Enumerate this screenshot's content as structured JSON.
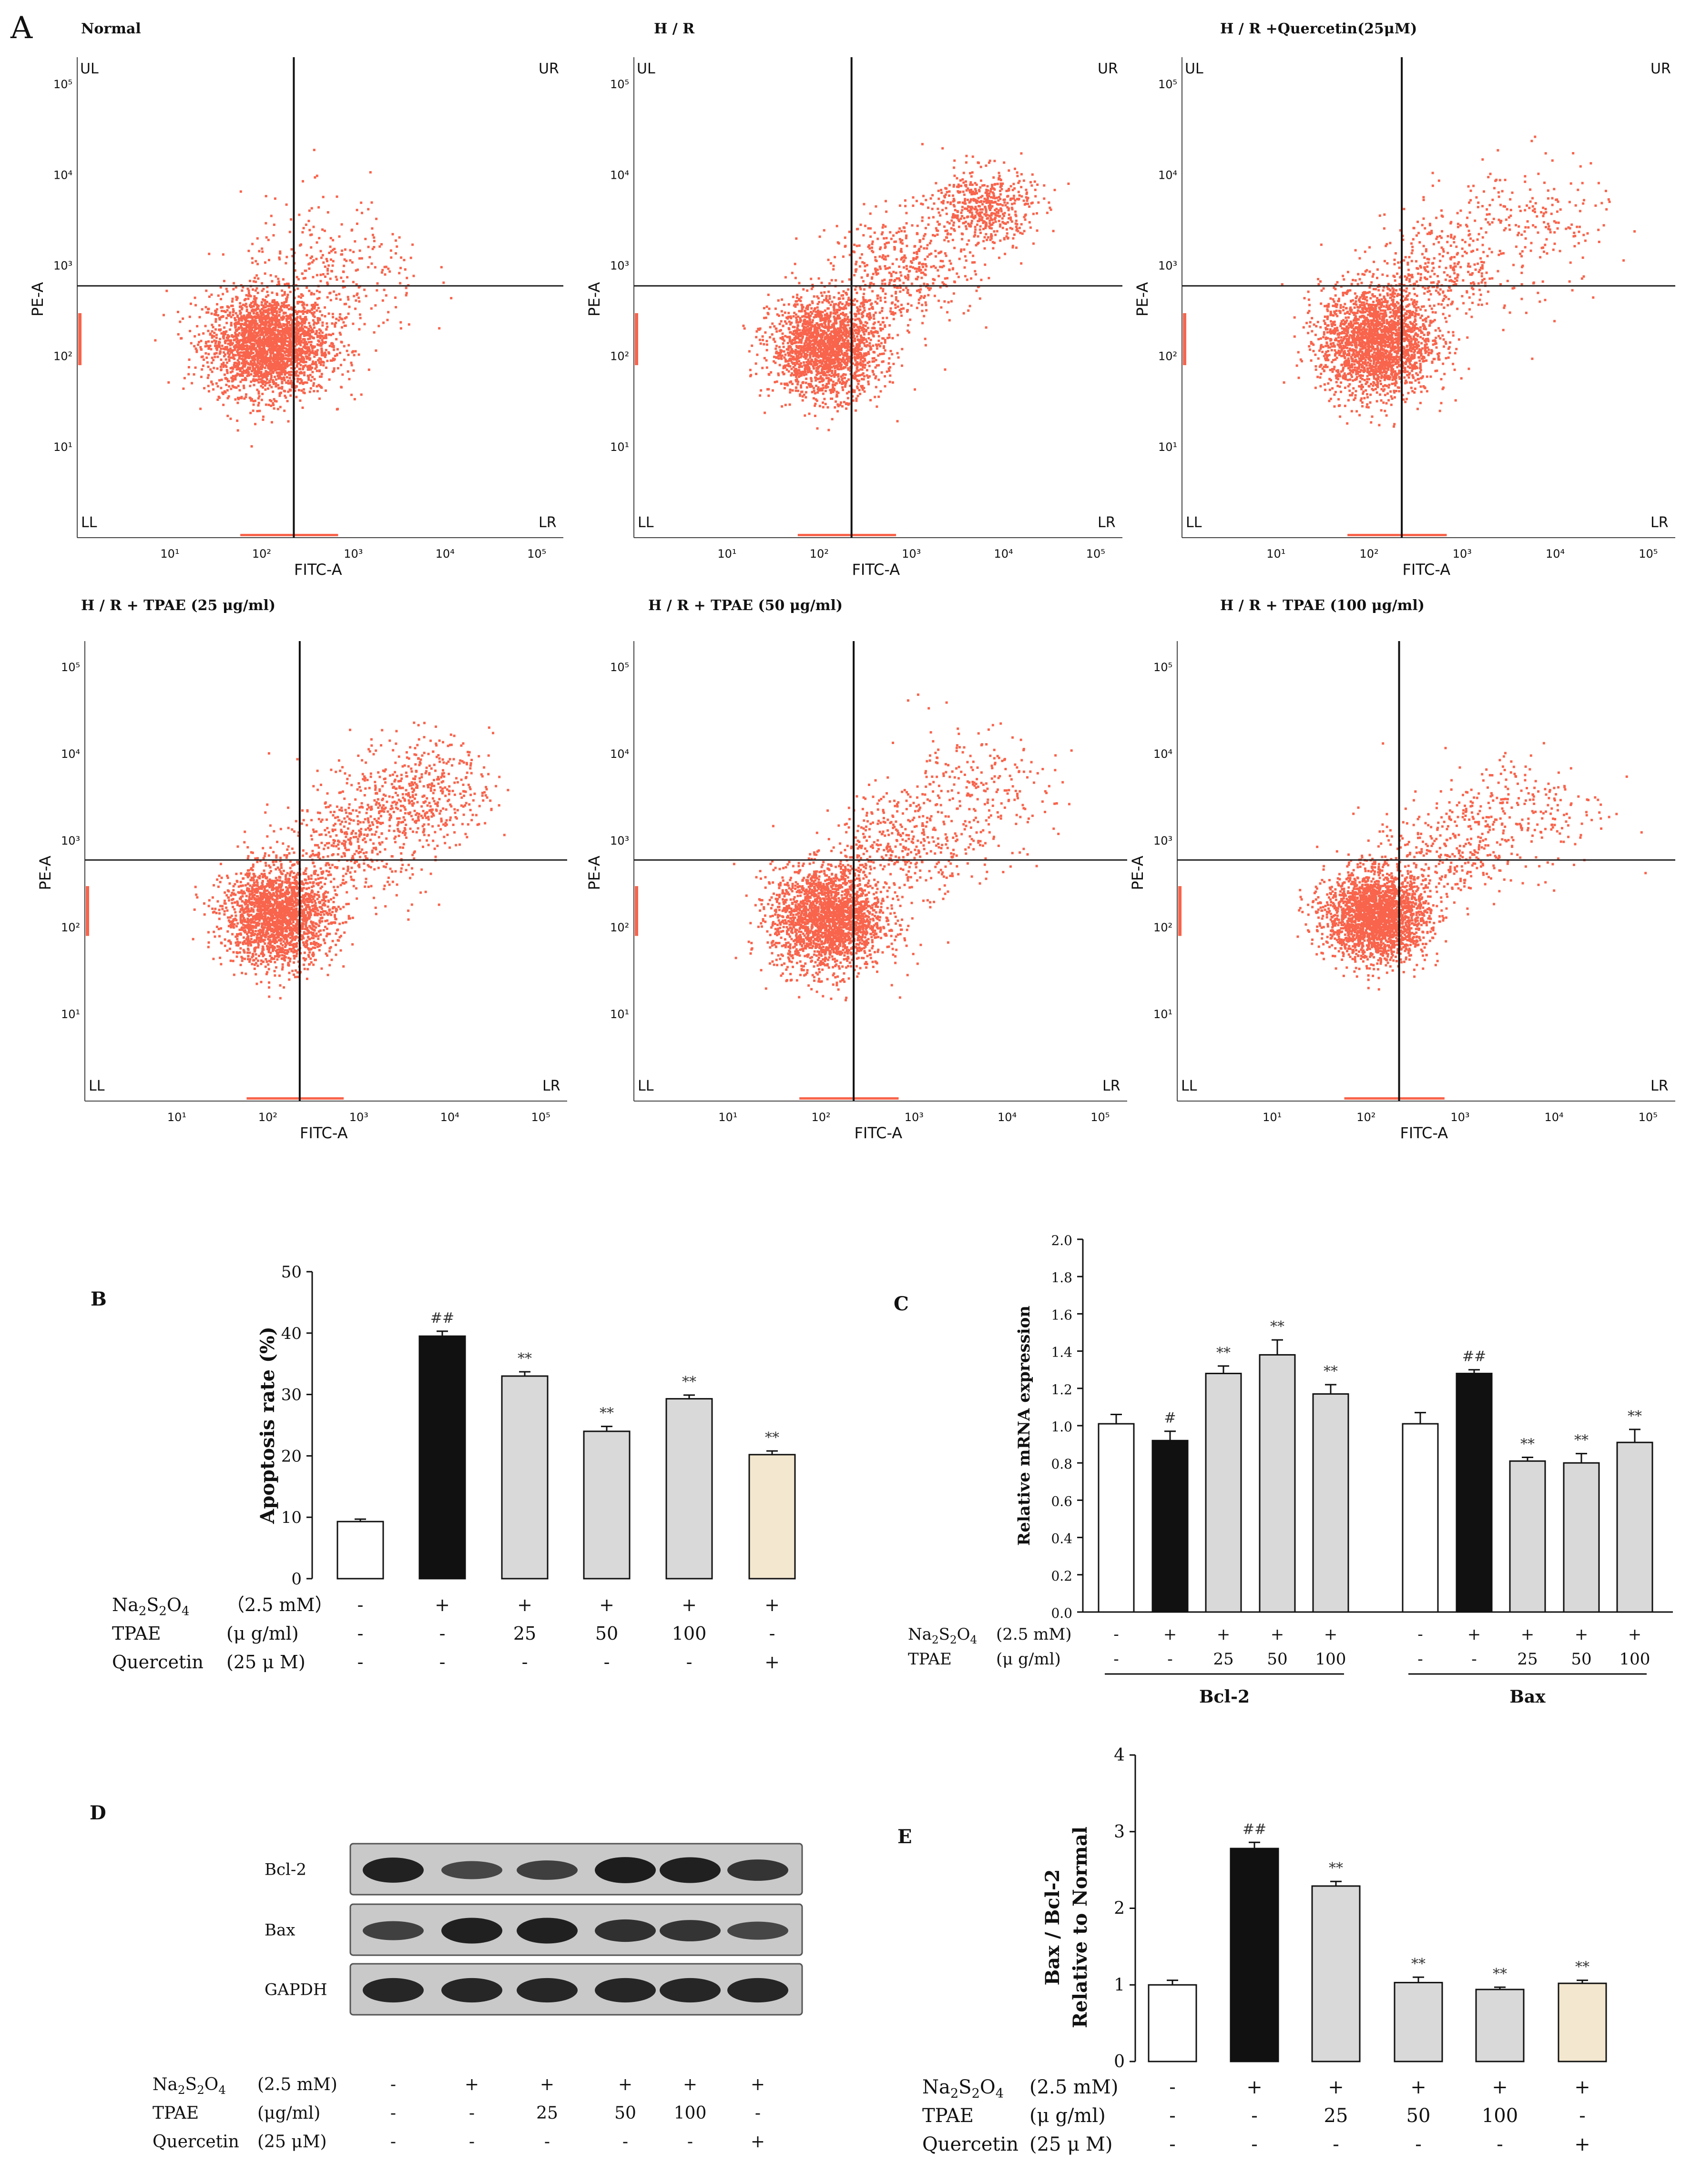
{
  "figure": {
    "panel_a_letter": "A",
    "panel_b_letter": "B",
    "panel_c_letter": "C",
    "panel_d_letter": "D",
    "panel_e_letter": "E"
  },
  "colors": {
    "dots": "#f8644c",
    "black_bar": "#111111",
    "grey_bar": "#d9d9d9",
    "white_bar": "#ffffff",
    "quercetin_bar": "#f3e7cf",
    "blot_bg": "#c9c9c9",
    "band": "#1a1a1a"
  },
  "chart_data": [
    {
      "type": "scatter",
      "panel": "A",
      "title": "Normal",
      "xlabel": "FITC-A",
      "ylabel": "PE-A",
      "scale": "log",
      "xlim": [
        1,
        200000
      ],
      "ylim": [
        1,
        200000
      ],
      "x_ticks": [
        "10¹",
        "10²",
        "10³",
        "10⁴",
        "10⁵"
      ],
      "y_ticks": [
        "10¹",
        "10²",
        "10³",
        "10⁴",
        "10⁵"
      ],
      "quadrant_labels": [
        "UL",
        "UR",
        "LL",
        "LR"
      ],
      "gate": {
        "x": 230,
        "y": 600
      },
      "populations": [
        {
          "cx": 120,
          "cy": 140,
          "sx": 0.33,
          "sy": 0.28,
          "n": 2600
        },
        {
          "cx": 600,
          "cy": 800,
          "sx": 0.5,
          "sy": 0.42,
          "n": 300
        }
      ]
    },
    {
      "type": "scatter",
      "panel": "A",
      "title": "H / R",
      "xlabel": "FITC-A",
      "ylabel": "PE-A",
      "scale": "log",
      "xlim": [
        1,
        200000
      ],
      "ylim": [
        1,
        200000
      ],
      "x_ticks": [
        "10¹",
        "10²",
        "10³",
        "10⁴",
        "10⁵"
      ],
      "y_ticks": [
        "10¹",
        "10²",
        "10³",
        "10⁴",
        "10⁵"
      ],
      "quadrant_labels": [
        "UL",
        "UR",
        "LL",
        "LR"
      ],
      "gate": {
        "x": 230,
        "y": 600
      },
      "populations": [
        {
          "cx": 120,
          "cy": 130,
          "sx": 0.3,
          "sy": 0.27,
          "n": 2000
        },
        {
          "cx": 800,
          "cy": 900,
          "sx": 0.38,
          "sy": 0.3,
          "n": 450
        },
        {
          "cx": 6000,
          "cy": 4500,
          "sx": 0.28,
          "sy": 0.22,
          "n": 550
        }
      ]
    },
    {
      "type": "scatter",
      "panel": "A",
      "title": "H / R +Quercetin(25μM)",
      "xlabel": "FITC-A",
      "ylabel": "PE-A",
      "scale": "log",
      "xlim": [
        1,
        200000
      ],
      "ylim": [
        1,
        200000
      ],
      "x_ticks": [
        "10¹",
        "10²",
        "10³",
        "10⁴",
        "10⁵"
      ],
      "y_ticks": [
        "10¹",
        "10²",
        "10³",
        "10⁴",
        "10⁵"
      ],
      "quadrant_labels": [
        "UL",
        "UR",
        "LL",
        "LR"
      ],
      "gate": {
        "x": 230,
        "y": 600
      },
      "populations": [
        {
          "cx": 120,
          "cy": 150,
          "sx": 0.3,
          "sy": 0.3,
          "n": 2300
        },
        {
          "cx": 600,
          "cy": 900,
          "sx": 0.38,
          "sy": 0.32,
          "n": 350
        },
        {
          "cx": 5000,
          "cy": 3000,
          "sx": 0.45,
          "sy": 0.35,
          "n": 200
        }
      ]
    },
    {
      "type": "scatter",
      "panel": "A",
      "title": "H / R + TPAE (25 μg/ml)",
      "xlabel": "FITC-A",
      "ylabel": "PE-A",
      "scale": "log",
      "xlim": [
        1,
        200000
      ],
      "ylim": [
        1,
        200000
      ],
      "x_ticks": [
        "10¹",
        "10²",
        "10³",
        "10⁴",
        "10⁵"
      ],
      "y_ticks": [
        "10¹",
        "10²",
        "10³",
        "10⁴",
        "10⁵"
      ],
      "quadrant_labels": [
        "LL",
        "LR"
      ],
      "gate": {
        "x": 230,
        "y": 600
      },
      "populations": [
        {
          "cx": 130,
          "cy": 140,
          "sx": 0.3,
          "sy": 0.28,
          "n": 2100
        },
        {
          "cx": 900,
          "cy": 1000,
          "sx": 0.4,
          "sy": 0.32,
          "n": 450
        },
        {
          "cx": 5000,
          "cy": 4000,
          "sx": 0.38,
          "sy": 0.3,
          "n": 450
        }
      ]
    },
    {
      "type": "scatter",
      "panel": "A",
      "title": "H / R + TPAE (50 μg/ml)",
      "xlabel": "FITC-A",
      "ylabel": "PE-A",
      "scale": "log",
      "xlim": [
        1,
        200000
      ],
      "ylim": [
        1,
        200000
      ],
      "x_ticks": [
        "10¹",
        "10²",
        "10³",
        "10⁴",
        "10⁵"
      ],
      "y_ticks": [
        "10¹",
        "10²",
        "10³",
        "10⁴",
        "10⁵"
      ],
      "quadrant_labels": [
        "LL",
        "LR"
      ],
      "gate": {
        "x": 230,
        "y": 600
      },
      "populations": [
        {
          "cx": 120,
          "cy": 130,
          "sx": 0.3,
          "sy": 0.3,
          "n": 2300
        },
        {
          "cx": 800,
          "cy": 1000,
          "sx": 0.38,
          "sy": 0.3,
          "n": 350
        },
        {
          "cx": 4000,
          "cy": 3500,
          "sx": 0.45,
          "sy": 0.38,
          "n": 250
        }
      ]
    },
    {
      "type": "scatter",
      "panel": "A",
      "title": "H / R + TPAE (100 μg/ml)",
      "xlabel": "FITC-A",
      "ylabel": "PE-A",
      "scale": "log",
      "xlim": [
        1,
        200000
      ],
      "ylim": [
        1,
        200000
      ],
      "x_ticks": [
        "10¹",
        "10²",
        "10³",
        "10⁴",
        "10⁵"
      ],
      "y_ticks": [
        "10¹",
        "10²",
        "10³",
        "10⁴",
        "10⁵"
      ],
      "quadrant_labels": [
        "LL",
        "LR"
      ],
      "gate": {
        "x": 230,
        "y": 600
      },
      "populations": [
        {
          "cx": 130,
          "cy": 140,
          "sx": 0.27,
          "sy": 0.25,
          "n": 2400
        },
        {
          "cx": 700,
          "cy": 700,
          "sx": 0.38,
          "sy": 0.3,
          "n": 300
        },
        {
          "cx": 5000,
          "cy": 2500,
          "sx": 0.45,
          "sy": 0.35,
          "n": 220
        }
      ]
    },
    {
      "type": "bar",
      "panel": "B",
      "ylabel": "Apoptosis rate (%)",
      "ylim": [
        0,
        50
      ],
      "y_ticks": [
        0,
        10,
        20,
        30,
        40,
        50
      ],
      "values": [
        9.3,
        39.5,
        33.0,
        24.0,
        29.3,
        20.2
      ],
      "errors": [
        0.4,
        0.8,
        0.7,
        0.8,
        0.6,
        0.6
      ],
      "fills": [
        "white",
        "black",
        "grey",
        "grey",
        "grey",
        "quercetin"
      ],
      "marks": [
        "",
        "##",
        "**",
        "**",
        "**",
        "**"
      ],
      "treatment_rows": [
        {
          "name": "Na2S2O4",
          "unit": "（2.5 mM）",
          "cells": [
            "-",
            "+",
            "+",
            "+",
            "+",
            "+"
          ]
        },
        {
          "name": "TPAE",
          "unit": "(μ g/ml)",
          "cells": [
            "-",
            "-",
            "25",
            "50",
            "100",
            "-"
          ]
        },
        {
          "name": "Quercetin",
          "unit": "(25 μ M)",
          "cells": [
            "-",
            "-",
            "-",
            "-",
            "-",
            "+"
          ]
        }
      ]
    },
    {
      "type": "bar",
      "panel": "C",
      "ylabel": "Relative mRNA expression",
      "ylim": [
        0,
        2.0
      ],
      "y_ticks": [
        "0.0",
        "0.2",
        "0.4",
        "0.6",
        "0.8",
        "1.0",
        "1.2",
        "1.4",
        "1.6",
        "1.8",
        "2.0"
      ],
      "groups": [
        {
          "name": "Bcl-2",
          "values": [
            1.01,
            0.92,
            1.28,
            1.38,
            1.17
          ],
          "errors": [
            0.05,
            0.05,
            0.04,
            0.08,
            0.05
          ],
          "marks": [
            "",
            "#",
            "**",
            "**",
            "**"
          ]
        },
        {
          "name": "Bax",
          "values": [
            1.01,
            1.28,
            0.81,
            0.8,
            0.91
          ],
          "errors": [
            0.06,
            0.02,
            0.02,
            0.05,
            0.07
          ],
          "marks": [
            "",
            "##",
            "**",
            "**",
            "**"
          ]
        }
      ],
      "fills": [
        "white",
        "black",
        "grey",
        "grey",
        "grey"
      ],
      "treatment_rows": [
        {
          "name": "Na2S2O4",
          "unit": "(2.5 mM)",
          "cells": [
            "-",
            "+",
            "+",
            "+",
            "+"
          ]
        },
        {
          "name": "TPAE",
          "unit": "(μ g/ml)",
          "cells": [
            "-",
            "-",
            "25",
            "50",
            "100"
          ]
        }
      ]
    },
    {
      "type": "table",
      "panel": "D",
      "blot_rows": [
        {
          "label": "Bcl-2",
          "intensity": [
            0.92,
            0.55,
            0.62,
            0.97,
            0.95,
            0.72
          ]
        },
        {
          "label": "Bax",
          "intensity": [
            0.6,
            0.95,
            0.95,
            0.78,
            0.72,
            0.55
          ]
        },
        {
          "label": "GAPDH",
          "intensity": [
            0.88,
            0.88,
            0.88,
            0.88,
            0.88,
            0.88
          ]
        }
      ],
      "treatment_rows": [
        {
          "name": "Na2S2O4",
          "unit": "(2.5 mM)",
          "cells": [
            "-",
            "+",
            "+",
            "+",
            "+",
            "+"
          ]
        },
        {
          "name": "TPAE",
          "unit": "(μg/ml)",
          "cells": [
            "-",
            "-",
            "25",
            "50",
            "100",
            "-"
          ]
        },
        {
          "name": "Quercetin",
          "unit": "(25 μM)",
          "cells": [
            "-",
            "-",
            "-",
            "-",
            "-",
            "+"
          ]
        }
      ]
    },
    {
      "type": "bar",
      "panel": "E",
      "ylabel_line1": "Bax / Bcl-2",
      "ylabel_line2": "Relative to Normal",
      "ylim": [
        0,
        4
      ],
      "y_ticks": [
        0,
        1,
        2,
        3,
        4
      ],
      "values": [
        1.0,
        2.78,
        2.29,
        1.03,
        0.94,
        1.02
      ],
      "errors": [
        0.06,
        0.08,
        0.06,
        0.07,
        0.03,
        0.04
      ],
      "fills": [
        "white",
        "black",
        "grey",
        "grey",
        "grey",
        "quercetin"
      ],
      "marks": [
        "",
        "##",
        "**",
        "**",
        "**",
        "**"
      ],
      "treatment_rows": [
        {
          "name": "Na2S2O4",
          "unit": "(2.5 mM)",
          "cells": [
            "-",
            "+",
            "+",
            "+",
            "+",
            "+"
          ]
        },
        {
          "name": "TPAE",
          "unit": "(μ g/ml)",
          "cells": [
            "-",
            "-",
            "25",
            "50",
            "100",
            "-"
          ]
        },
        {
          "name": "Quercetin",
          "unit": "(25 μ M)",
          "cells": [
            "-",
            "-",
            "-",
            "-",
            "-",
            "+"
          ]
        }
      ]
    }
  ]
}
